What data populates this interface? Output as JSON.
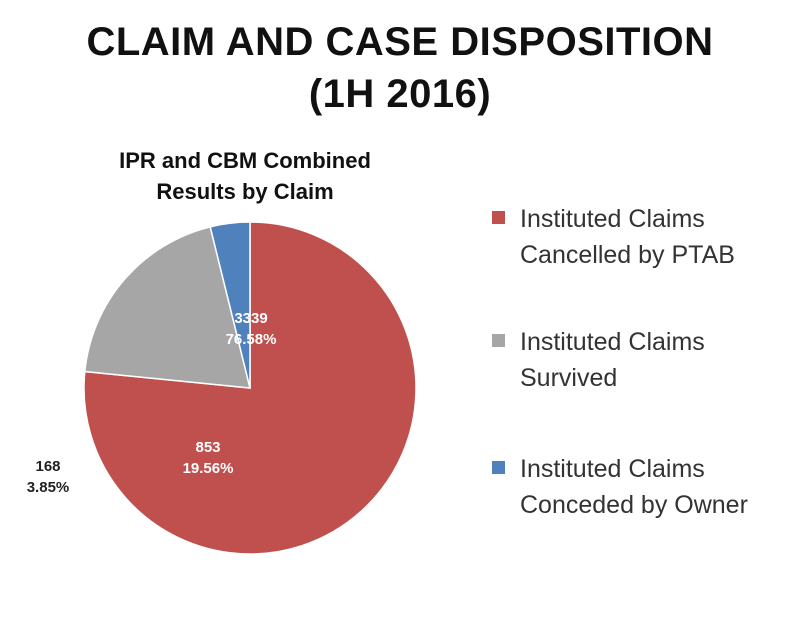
{
  "chart_data": {
    "type": "pie",
    "title": [
      "CLAIM AND CASE DISPOSITION",
      "(1H 2016)"
    ],
    "subtitle": [
      "IPR and CBM Combined",
      "Results by Claim"
    ],
    "slices": [
      {
        "label": "Institituted Claims Cancelled by PTAB",
        "legend_lines": [
          "Instituted Claims",
          "Cancelled by PTAB"
        ],
        "value": 3339,
        "percent": "76.58%",
        "value_label": "3339",
        "color": "#c0504d"
      },
      {
        "label": "Instituted Claims Survived",
        "legend_lines": [
          "Instituted Claims",
          "Survived"
        ],
        "value": 853,
        "percent": "19.56%",
        "value_label": "853",
        "color": "#a6a6a6"
      },
      {
        "label": "Instituted Claims Conceded by Owner",
        "legend_lines": [
          "Instituted Claims",
          "Conceded by Owner"
        ],
        "value": 168,
        "percent": "3.85%",
        "value_label": "168",
        "color": "#4f81bd"
      }
    ],
    "legend_position": "right"
  }
}
